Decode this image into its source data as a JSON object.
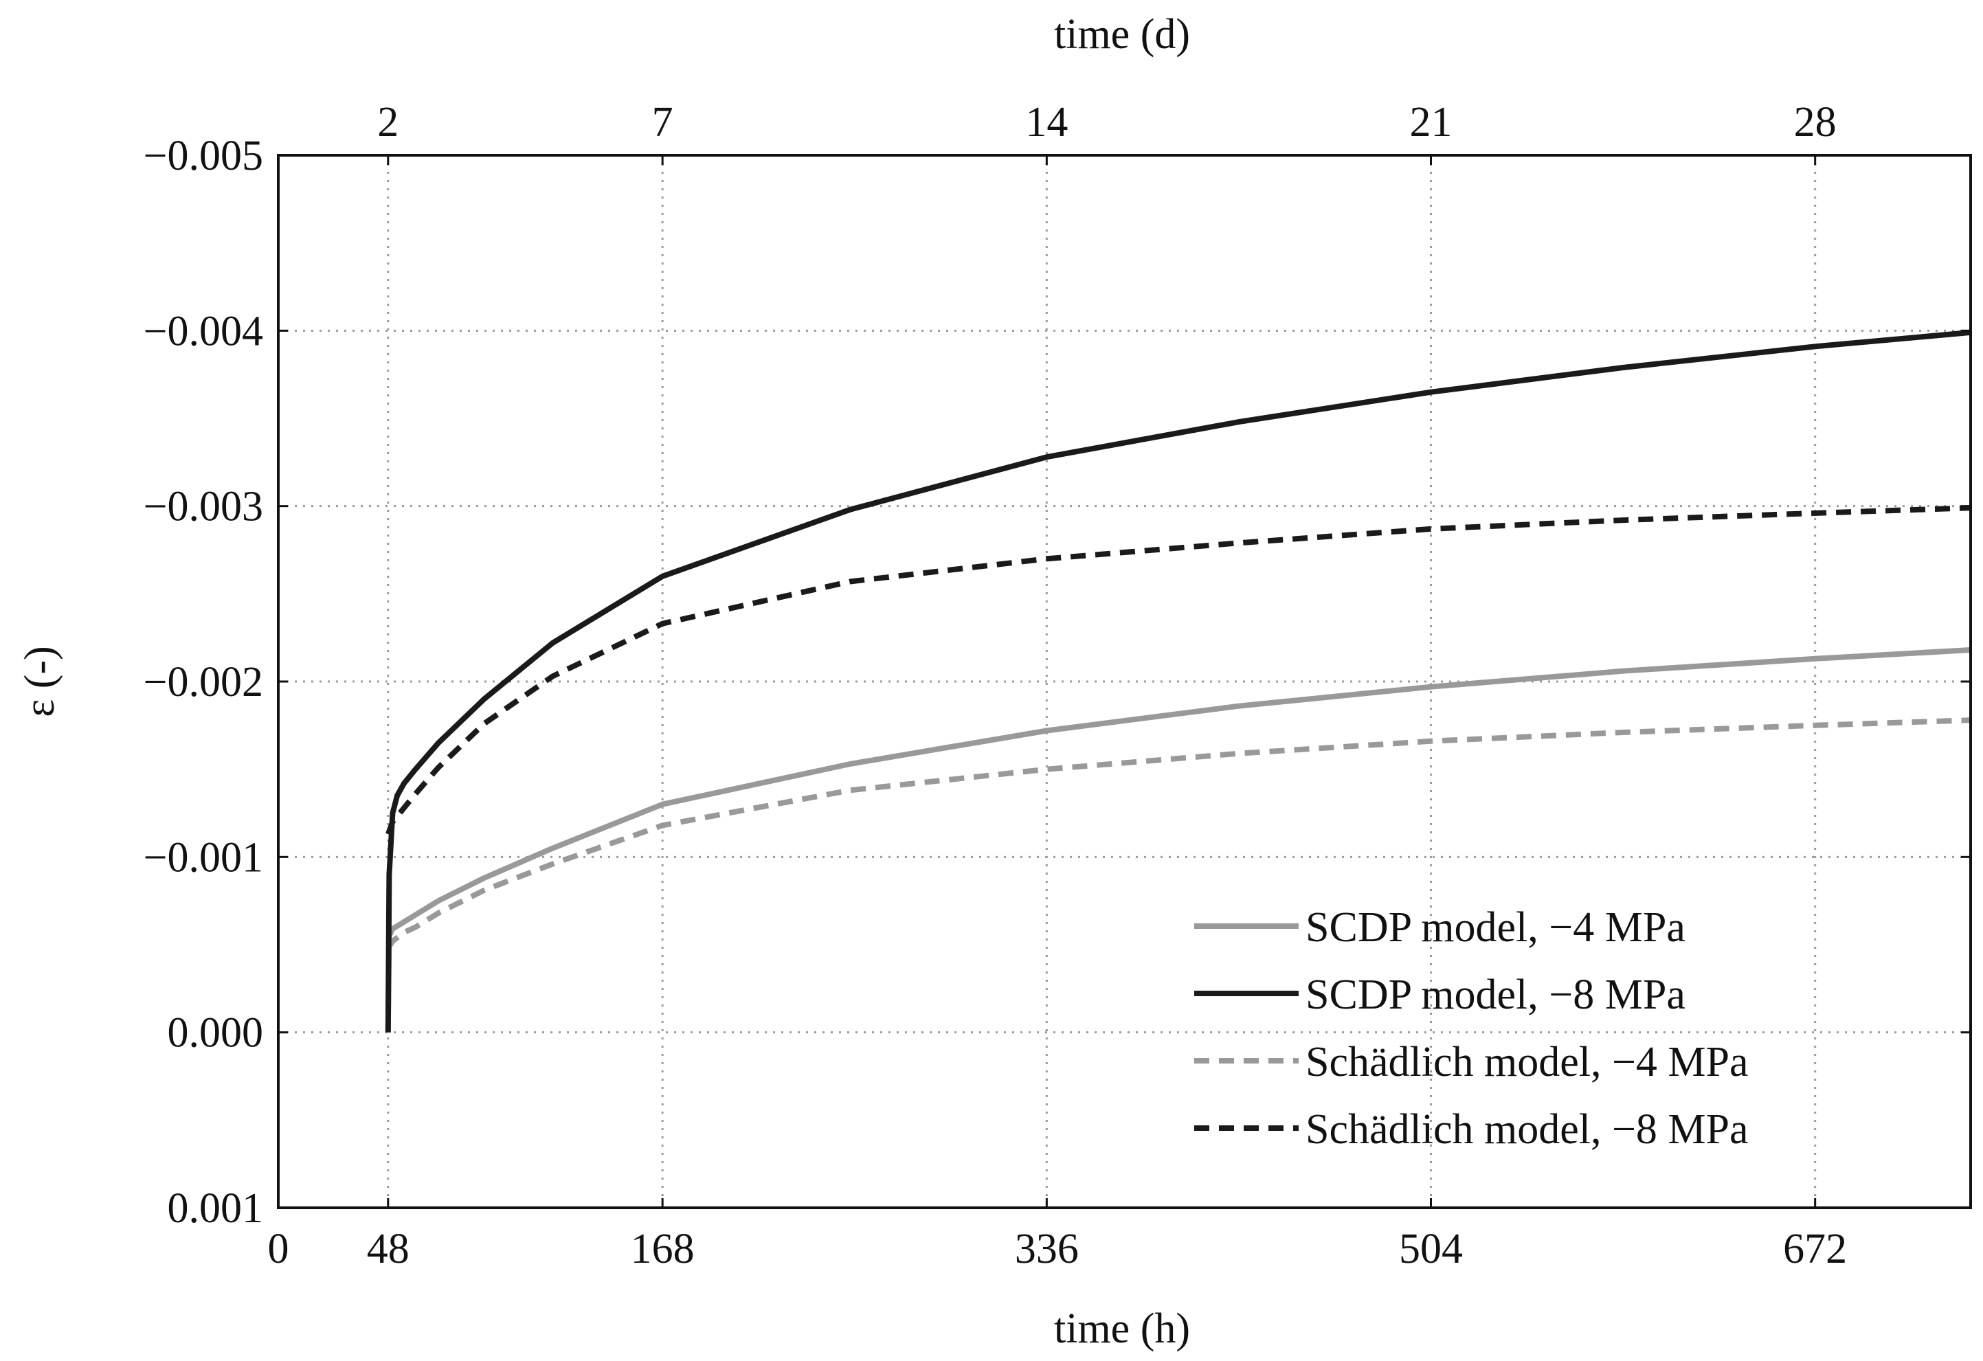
{
  "chart_data": {
    "type": "line",
    "xlabel": "time (h)",
    "x2label": "time (d)",
    "ylabel": "ε (-)",
    "xlim": [
      0,
      740
    ],
    "ylim": [
      0.001,
      -0.005
    ],
    "x_ticks": [
      {
        "value": 0,
        "label": "0"
      },
      {
        "value": 48,
        "label": "48"
      },
      {
        "value": 168,
        "label": "168"
      },
      {
        "value": 336,
        "label": "336"
      },
      {
        "value": 504,
        "label": "504"
      },
      {
        "value": 672,
        "label": "672"
      }
    ],
    "x2_ticks": [
      {
        "value": 48,
        "label": "2"
      },
      {
        "value": 168,
        "label": "7"
      },
      {
        "value": 336,
        "label": "14"
      },
      {
        "value": 504,
        "label": "21"
      },
      {
        "value": 672,
        "label": "28"
      }
    ],
    "y_ticks": [
      {
        "value": -0.005,
        "label": "−0.005"
      },
      {
        "value": -0.004,
        "label": "−0.004"
      },
      {
        "value": -0.003,
        "label": "−0.003"
      },
      {
        "value": -0.002,
        "label": "−0.002"
      },
      {
        "value": -0.001,
        "label": "−0.001"
      },
      {
        "value": 0.0,
        "label": "0.000"
      },
      {
        "value": 0.001,
        "label": "0.001"
      }
    ],
    "grid": true,
    "legend_position": "bottom-right",
    "series": [
      {
        "name": "SCDP model, −4 MPa",
        "color": "#999999",
        "dash": "solid",
        "x": [
          48,
          48.5,
          50,
          55,
          60,
          70,
          90,
          120,
          168,
          250,
          336,
          420,
          504,
          588,
          672,
          740
        ],
        "y": [
          0.0,
          -0.00055,
          -0.00059,
          -0.00063,
          -0.00067,
          -0.00075,
          -0.00088,
          -0.00105,
          -0.0013,
          -0.00153,
          -0.00172,
          -0.00186,
          -0.00197,
          -0.00206,
          -0.00213,
          -0.00218
        ]
      },
      {
        "name": "SCDP model, −8 MPa",
        "color": "#1a1a1a",
        "dash": "solid",
        "x": [
          48,
          48.5,
          50,
          52,
          55,
          60,
          70,
          90,
          120,
          168,
          250,
          336,
          420,
          504,
          588,
          672,
          740
        ],
        "y": [
          0.0,
          -0.0009,
          -0.00125,
          -0.00135,
          -0.00142,
          -0.0015,
          -0.00165,
          -0.0019,
          -0.00222,
          -0.0026,
          -0.00298,
          -0.00328,
          -0.00348,
          -0.00365,
          -0.00379,
          -0.00391,
          -0.00399
        ]
      },
      {
        "name": "Schädlich model, −4 MPa",
        "color": "#999999",
        "dash": "dashed",
        "x": [
          48,
          50,
          55,
          60,
          70,
          90,
          120,
          168,
          250,
          336,
          420,
          504,
          588,
          672,
          740
        ],
        "y": [
          -0.00048,
          -0.00052,
          -0.00057,
          -0.0006,
          -0.00068,
          -0.00081,
          -0.00096,
          -0.00118,
          -0.00138,
          -0.0015,
          -0.00159,
          -0.00166,
          -0.00171,
          -0.00175,
          -0.00178
        ]
      },
      {
        "name": "Schädlich model, −8 MPa",
        "color": "#1a1a1a",
        "dash": "dashed",
        "x": [
          48,
          50,
          55,
          60,
          70,
          90,
          120,
          168,
          250,
          336,
          420,
          504,
          588,
          672,
          740
        ],
        "y": [
          -0.00113,
          -0.0012,
          -0.00128,
          -0.00136,
          -0.00151,
          -0.00176,
          -0.00203,
          -0.00233,
          -0.00257,
          -0.0027,
          -0.00279,
          -0.00287,
          -0.00292,
          -0.00296,
          -0.00299
        ]
      }
    ]
  }
}
